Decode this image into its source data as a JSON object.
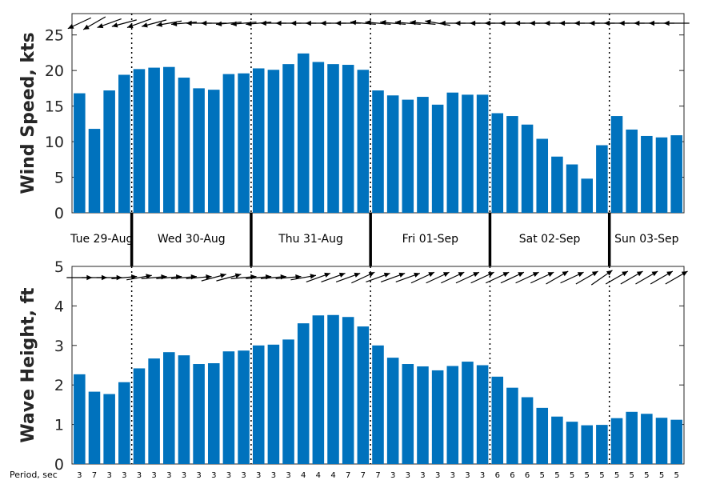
{
  "chart_data": [
    {
      "type": "bar",
      "ylabel": "Wind Speed, kts",
      "ylim": [
        0,
        28
      ],
      "yticks": [
        "0",
        "5",
        "10",
        "15",
        "20",
        "25"
      ],
      "bar_color": "#0072bd",
      "values": [
        16.8,
        11.8,
        17.2,
        19.4,
        20.2,
        20.4,
        20.5,
        19.0,
        17.5,
        17.3,
        19.5,
        19.6,
        20.3,
        20.1,
        20.9,
        22.4,
        21.2,
        20.9,
        20.8,
        20.1,
        17.2,
        16.5,
        15.9,
        16.3,
        15.2,
        16.9,
        16.6,
        16.6,
        14.0,
        13.6,
        12.4,
        10.4,
        7.9,
        6.8,
        4.8,
        9.5,
        13.6,
        11.7,
        10.8,
        10.6,
        10.9
      ],
      "direction_arrows": [
        155,
        150,
        160,
        165,
        160,
        165,
        170,
        175,
        180,
        180,
        175,
        175,
        175,
        180,
        180,
        180,
        180,
        180,
        180,
        185,
        185,
        185,
        185,
        185,
        190,
        180,
        180,
        180,
        180,
        180,
        180,
        180,
        180,
        180,
        180,
        180,
        180,
        180,
        180,
        180,
        180
      ]
    },
    {
      "type": "bar",
      "ylabel": "Wave Height, ft",
      "ylim": [
        0,
        5
      ],
      "yticks": [
        "0",
        "1",
        "2",
        "3",
        "4",
        "5"
      ],
      "bar_color": "#0072bd",
      "values": [
        2.27,
        1.83,
        1.77,
        2.07,
        2.42,
        2.67,
        2.83,
        2.75,
        2.53,
        2.55,
        2.85,
        2.87,
        3.0,
        3.02,
        3.15,
        3.56,
        3.76,
        3.77,
        3.72,
        3.48,
        3.0,
        2.69,
        2.53,
        2.47,
        2.37,
        2.48,
        2.59,
        2.5,
        2.21,
        1.93,
        1.69,
        1.42,
        1.2,
        1.07,
        0.98,
        0.99,
        1.16,
        1.32,
        1.27,
        1.17,
        1.12
      ],
      "direction_arrows": [
        0,
        0,
        0,
        -5,
        -10,
        -5,
        -5,
        -5,
        -5,
        -15,
        -15,
        -5,
        -5,
        -5,
        -5,
        -10,
        -20,
        -20,
        -20,
        -25,
        -20,
        -20,
        -20,
        -25,
        -25,
        -25,
        -25,
        -25,
        -25,
        -25,
        -25,
        -25,
        -30,
        -25,
        -30,
        -35,
        -30,
        -30,
        -30,
        -30,
        -30
      ]
    }
  ],
  "days": [
    "Tue 29-Aug",
    "Wed 30-Aug",
    "Thu 31-Aug",
    "Fri 01-Sep",
    "Sat 02-Sep",
    "Sun 03-Sep"
  ],
  "period_label": "Period, sec",
  "periods": [
    "3",
    "7",
    "3",
    "3",
    "3",
    "3",
    "3",
    "3",
    "3",
    "3",
    "3",
    "3",
    "3",
    "3",
    "3",
    "4",
    "4",
    "4",
    "7",
    "7",
    "7",
    "3",
    "3",
    "3",
    "3",
    "3",
    "3",
    "3",
    "6",
    "6",
    "6",
    "5",
    "5",
    "5",
    "5",
    "5",
    "5",
    "5",
    "5",
    "5",
    "5"
  ]
}
